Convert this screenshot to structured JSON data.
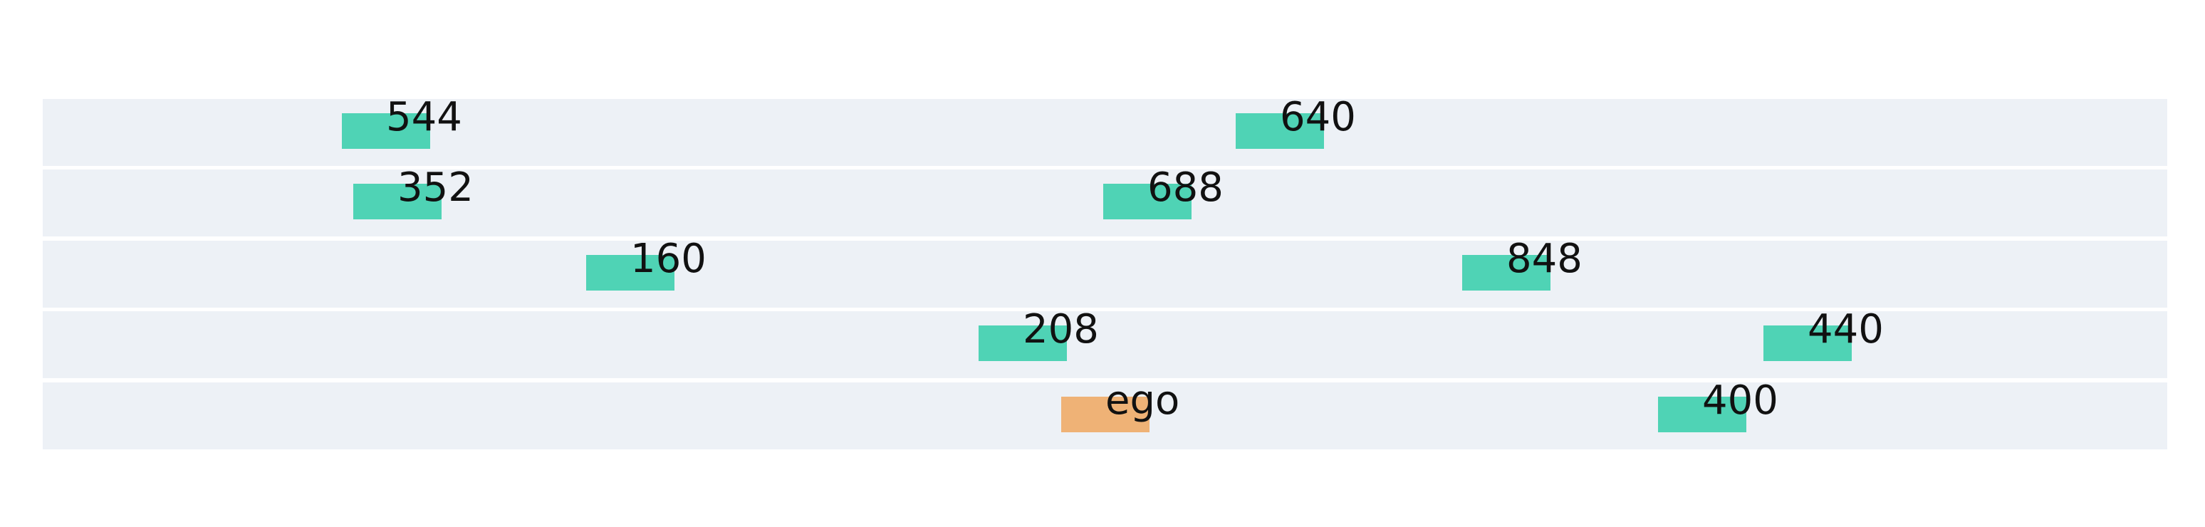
{
  "scene": {
    "lane_color": "#edf1f6",
    "background_color": "#ffffff",
    "lanes": [
      {
        "vehicles": [
          {
            "label": "544",
            "kind": "other",
            "color": "#4fd3b5"
          },
          {
            "label": "640",
            "kind": "other",
            "color": "#4fd3b5"
          }
        ]
      },
      {
        "vehicles": [
          {
            "label": "352",
            "kind": "other",
            "color": "#4fd3b5"
          },
          {
            "label": "688",
            "kind": "other",
            "color": "#4fd3b5"
          }
        ]
      },
      {
        "vehicles": [
          {
            "label": "160",
            "kind": "other",
            "color": "#4fd3b5"
          },
          {
            "label": "848",
            "kind": "other",
            "color": "#4fd3b5"
          }
        ]
      },
      {
        "vehicles": [
          {
            "label": "208",
            "kind": "other",
            "color": "#4fd3b5"
          },
          {
            "label": "440",
            "kind": "other",
            "color": "#4fd3b5"
          }
        ]
      },
      {
        "vehicles": [
          {
            "label": "ego",
            "kind": "ego",
            "color": "#efb276"
          },
          {
            "label": "400",
            "kind": "other",
            "color": "#4fd3b5"
          }
        ]
      }
    ]
  }
}
